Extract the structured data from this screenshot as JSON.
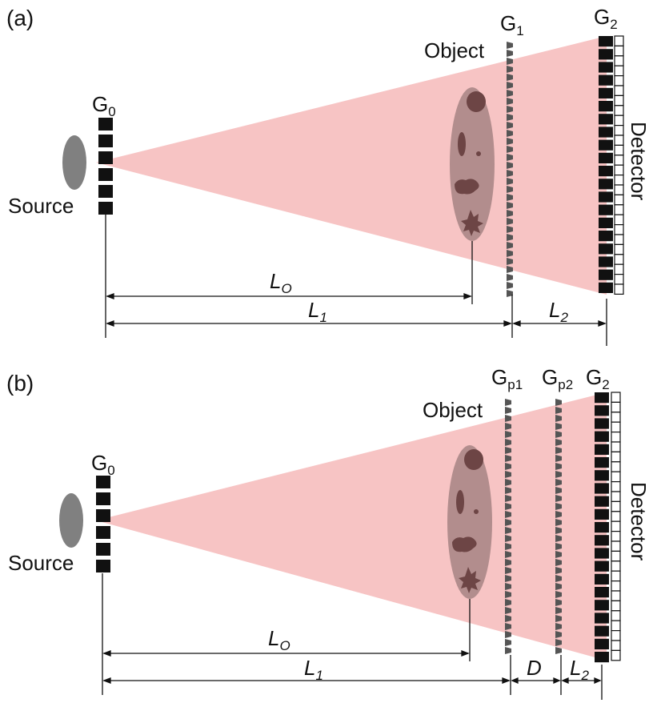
{
  "panels": [
    {
      "id": "a",
      "tag": "(a)",
      "source_label": "Source",
      "object_label": "Object",
      "detector_label": "Detector",
      "gratings": [
        {
          "letter": "G",
          "sub": "0"
        },
        {
          "letter": "G",
          "sub": "1"
        },
        {
          "letter": "G",
          "sub": "2"
        }
      ],
      "distances": [
        {
          "letter": "L",
          "sub": "O"
        },
        {
          "letter": "L",
          "sub": "1"
        },
        {
          "letter": "L",
          "sub": "2"
        }
      ]
    },
    {
      "id": "b",
      "tag": "(b)",
      "source_label": "Source",
      "object_label": "Object",
      "detector_label": "Detector",
      "gratings": [
        {
          "letter": "G",
          "sub": "0"
        },
        {
          "letter": "G",
          "sub": "p1"
        },
        {
          "letter": "G",
          "sub": "p2"
        },
        {
          "letter": "G",
          "sub": "2"
        }
      ],
      "distances": [
        {
          "letter": "L",
          "sub": "O"
        },
        {
          "letter": "L",
          "sub": "1"
        },
        {
          "letter": "D",
          "sub": ""
        },
        {
          "letter": "L",
          "sub": "2"
        }
      ]
    }
  ],
  "colors": {
    "beam": "#f7c4c4",
    "object": "#9b7b7b",
    "object_features": "#6d4545",
    "source": "#808080",
    "grating_dark": "#111111",
    "phase_grating": "#555555",
    "line": "#111111"
  }
}
